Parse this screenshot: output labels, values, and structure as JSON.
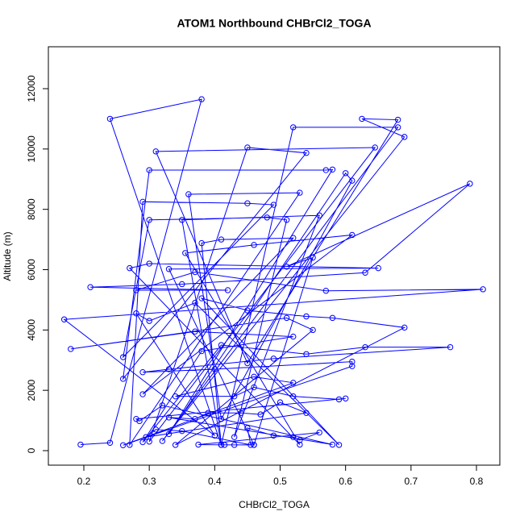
{
  "chart_data": {
    "type": "line",
    "title": "ATOM1 Northbound CHBrCl2_TOGA",
    "x_label": "CHBrCl2_TOGA",
    "y_label": "Altitude (m)",
    "xlim": [
      0.1458,
      0.8357
    ],
    "ylim": [
      -481,
      13390
    ],
    "xticks": [
      0.2,
      0.3,
      0.4,
      0.5,
      0.6,
      0.7,
      0.8
    ],
    "yticks": [
      0,
      2000,
      4000,
      6000,
      8000,
      10000,
      12000
    ],
    "marker": "open-circle",
    "x": [
      0.195,
      0.24,
      0.38,
      0.24,
      0.41,
      0.52,
      0.68,
      0.32,
      0.69,
      0.625,
      0.68,
      0.45,
      0.31,
      0.645,
      0.3,
      0.45,
      0.54,
      0.26,
      0.3,
      0.57,
      0.58,
      0.33,
      0.6,
      0.61,
      0.41,
      0.36,
      0.53,
      0.27,
      0.29,
      0.45,
      0.49,
      0.26,
      0.3,
      0.48,
      0.51,
      0.43,
      0.56,
      0.35,
      0.41,
      0.38,
      0.41,
      0.52,
      0.29,
      0.61,
      0.46,
      0.355,
      0.53,
      0.27,
      0.3,
      0.65,
      0.33,
      0.46,
      0.55,
      0.51,
      0.79,
      0.63,
      0.35,
      0.21,
      0.42,
      0.28,
      0.37,
      0.57,
      0.81,
      0.17,
      0.4,
      0.28,
      0.3,
      0.37,
      0.59,
      0.38,
      0.45,
      0.54,
      0.58,
      0.69,
      0.34,
      0.55,
      0.51,
      0.18,
      0.37,
      0.52,
      0.38,
      0.29,
      0.41,
      0.54,
      0.63,
      0.76,
      0.49,
      0.33,
      0.29,
      0.4,
      0.61,
      0.61,
      0.26,
      0.52,
      0.46,
      0.34,
      0.43,
      0.46,
      0.52,
      0.59,
      0.6,
      0.28,
      0.285,
      0.32,
      0.58,
      0.33,
      0.37,
      0.39,
      0.44,
      0.47,
      0.5,
      0.54,
      0.295,
      0.31,
      0.35,
      0.455,
      0.45,
      0.49,
      0.52,
      0.53,
      0.56,
      0.375,
      0.43,
      0.415,
      0.46
    ],
    "series": [
      {
        "color": "#0000ff",
        "values": [
          200,
          260,
          11650,
          11000,
          190,
          10720,
          10720,
          320,
          10400,
          11000,
          10970,
          2900,
          9920,
          10050,
          300,
          10050,
          9870,
          2380,
          9300,
          9300,
          9320,
          550,
          9200,
          8950,
          1050,
          8500,
          8550,
          190,
          8250,
          8200,
          8150,
          3100,
          7650,
          7730,
          7650,
          450,
          7800,
          7650,
          190,
          6880,
          7000,
          7050,
          1870,
          7150,
          6820,
          6550,
          200,
          6050,
          6200,
          6050,
          6020,
          190,
          6400,
          6100,
          8850,
          5900,
          5520,
          5420,
          5320,
          5320,
          5920,
          5300,
          5350,
          4350,
          500,
          4550,
          4300,
          4900,
          190,
          5050,
          4650,
          4450,
          4400,
          4080,
          190,
          4000,
          4400,
          3370,
          3950,
          3780,
          3300,
          280,
          3500,
          3200,
          3430,
          3430,
          3050,
          2700,
          2600,
          2700,
          2950,
          2800,
          180,
          2250,
          2450,
          1800,
          1800,
          2100,
          1800,
          1700,
          1730,
          1050,
          980,
          1500,
          200,
          1100,
          1050,
          1250,
          1250,
          1200,
          1600,
          1250,
          450,
          700,
          650,
          190,
          750,
          500,
          450,
          350,
          600,
          200,
          190,
          190,
          190
        ]
      }
    ]
  }
}
